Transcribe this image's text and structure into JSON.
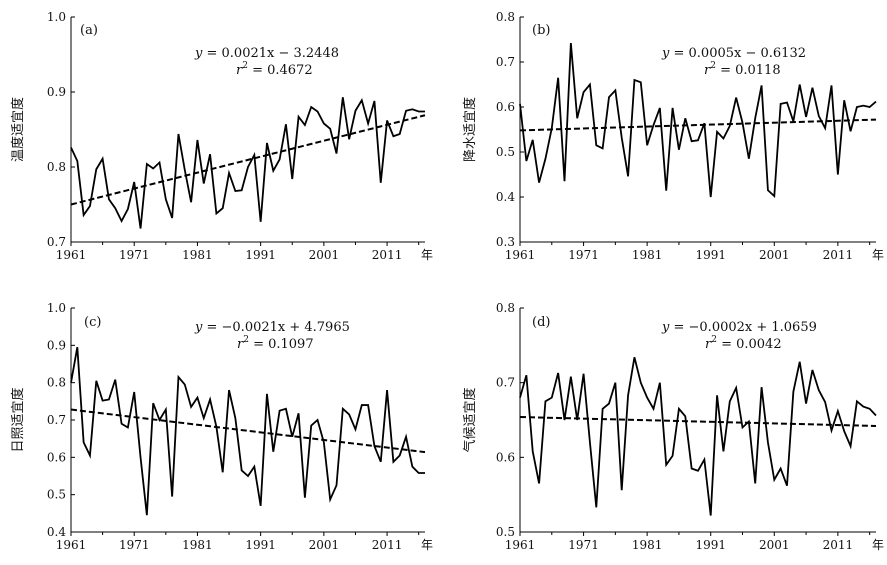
{
  "chart_data": [
    {
      "type": "line",
      "panel_label": "(a)",
      "ylabel": "温度适宜度",
      "xlabel_suffix": "年",
      "ylim": [
        0.7,
        1.0
      ],
      "yticks": [
        "0.7",
        "0.8",
        "0.9",
        "1.0"
      ],
      "xticks": [
        "1961",
        "1971",
        "1981",
        "1991",
        "2001",
        "2011"
      ],
      "x": [
        1961,
        1962,
        1963,
        1964,
        1965,
        1966,
        1967,
        1968,
        1969,
        1970,
        1971,
        1972,
        1973,
        1974,
        1975,
        1976,
        1977,
        1978,
        1979,
        1980,
        1981,
        1982,
        1983,
        1984,
        1985,
        1986,
        1987,
        1988,
        1989,
        1990,
        1991,
        1992,
        1993,
        1994,
        1995,
        1996,
        1997,
        1998,
        1999,
        2000,
        2001,
        2002,
        2003,
        2004,
        2005,
        2006,
        2007,
        2008,
        2009,
        2010,
        2011,
        2012,
        2013,
        2014,
        2015,
        2016,
        2017
      ],
      "series": [
        {
          "name": "observed",
          "values": [
            0.826,
            0.808,
            0.736,
            0.748,
            0.797,
            0.811,
            0.757,
            0.745,
            0.728,
            0.744,
            0.78,
            0.718,
            0.804,
            0.798,
            0.806,
            0.757,
            0.732,
            0.844,
            0.796,
            0.753,
            0.836,
            0.778,
            0.817,
            0.738,
            0.745,
            0.792,
            0.768,
            0.769,
            0.8,
            0.816,
            0.727,
            0.832,
            0.795,
            0.81,
            0.857,
            0.784,
            0.867,
            0.856,
            0.88,
            0.874,
            0.858,
            0.851,
            0.818,
            0.893,
            0.837,
            0.875,
            0.889,
            0.858,
            0.888,
            0.779,
            0.862,
            0.841,
            0.844,
            0.875,
            0.877,
            0.874,
            0.874
          ]
        },
        {
          "name": "trend",
          "style": "dashed",
          "values": [
            0.75,
            0.869
          ],
          "x": [
            1961,
            2017
          ]
        }
      ],
      "equation_prefix": "y",
      "equation_rest": " = 0.0021x − 3.2448",
      "r2_prefix": "r",
      "r2_rest": " = 0.4672"
    },
    {
      "type": "line",
      "panel_label": "(b)",
      "ylabel": "降水适宜度",
      "xlabel_suffix": "年",
      "ylim": [
        0.3,
        0.8
      ],
      "yticks": [
        "0.3",
        "0.4",
        "0.5",
        "0.6",
        "0.7",
        "0.8"
      ],
      "xticks": [
        "1961",
        "1971",
        "1981",
        "1991",
        "2001",
        "2011"
      ],
      "x": [
        1961,
        1962,
        1963,
        1964,
        1965,
        1966,
        1967,
        1968,
        1969,
        1970,
        1971,
        1972,
        1973,
        1974,
        1975,
        1976,
        1977,
        1978,
        1979,
        1980,
        1981,
        1982,
        1983,
        1984,
        1985,
        1986,
        1987,
        1988,
        1989,
        1990,
        1991,
        1992,
        1993,
        1994,
        1995,
        1996,
        1997,
        1998,
        1999,
        2000,
        2001,
        2002,
        2003,
        2004,
        2005,
        2006,
        2007,
        2008,
        2009,
        2010,
        2011,
        2012,
        2013,
        2014,
        2015,
        2016,
        2017
      ],
      "series": [
        {
          "name": "observed",
          "values": [
            0.607,
            0.48,
            0.527,
            0.432,
            0.485,
            0.553,
            0.665,
            0.435,
            0.742,
            0.575,
            0.633,
            0.65,
            0.515,
            0.508,
            0.622,
            0.637,
            0.532,
            0.446,
            0.66,
            0.655,
            0.515,
            0.56,
            0.598,
            0.414,
            0.598,
            0.505,
            0.575,
            0.524,
            0.526,
            0.564,
            0.4,
            0.545,
            0.53,
            0.558,
            0.621,
            0.565,
            0.485,
            0.575,
            0.648,
            0.415,
            0.402,
            0.607,
            0.61,
            0.568,
            0.65,
            0.578,
            0.643,
            0.58,
            0.553,
            0.648,
            0.45,
            0.615,
            0.546,
            0.6,
            0.603,
            0.6,
            0.612
          ]
        },
        {
          "name": "trend",
          "style": "dashed",
          "values": [
            0.548,
            0.572
          ],
          "x": [
            1961,
            2017
          ]
        }
      ],
      "equation_prefix": "y",
      "equation_rest": " = 0.0005x − 0.6132",
      "r2_prefix": "r",
      "r2_rest": " = 0.0118"
    },
    {
      "type": "line",
      "panel_label": "(c)",
      "ylabel": "日照适宜度",
      "xlabel_suffix": "年",
      "ylim": [
        0.4,
        1.0
      ],
      "yticks": [
        "0.4",
        "0.5",
        "0.6",
        "0.7",
        "0.8",
        "0.9",
        "1.0"
      ],
      "xticks": [
        "1961",
        "1971",
        "1981",
        "1991",
        "2001",
        "2011"
      ],
      "x": [
        1961,
        1962,
        1963,
        1964,
        1965,
        1966,
        1967,
        1968,
        1969,
        1970,
        1971,
        1972,
        1973,
        1974,
        1975,
        1976,
        1977,
        1978,
        1979,
        1980,
        1981,
        1982,
        1983,
        1984,
        1985,
        1986,
        1987,
        1988,
        1989,
        1990,
        1991,
        1992,
        1993,
        1994,
        1995,
        1996,
        1997,
        1998,
        1999,
        2000,
        2001,
        2002,
        2003,
        2004,
        2005,
        2006,
        2007,
        2008,
        2009,
        2010,
        2011,
        2012,
        2013,
        2014,
        2015,
        2016,
        2017
      ],
      "series": [
        {
          "name": "observed",
          "values": [
            0.8,
            0.895,
            0.64,
            0.605,
            0.805,
            0.752,
            0.755,
            0.808,
            0.69,
            0.68,
            0.775,
            0.6,
            0.445,
            0.745,
            0.7,
            0.728,
            0.495,
            0.815,
            0.795,
            0.735,
            0.76,
            0.705,
            0.755,
            0.682,
            0.56,
            0.78,
            0.705,
            0.565,
            0.55,
            0.575,
            0.47,
            0.77,
            0.615,
            0.725,
            0.73,
            0.655,
            0.718,
            0.492,
            0.685,
            0.7,
            0.64,
            0.487,
            0.525,
            0.73,
            0.715,
            0.675,
            0.74,
            0.74,
            0.63,
            0.588,
            0.78,
            0.588,
            0.605,
            0.655,
            0.575,
            0.558,
            0.558
          ]
        },
        {
          "name": "trend",
          "style": "dashed",
          "values": [
            0.728,
            0.614
          ],
          "x": [
            1961,
            2017
          ]
        }
      ],
      "equation_prefix": "y",
      "equation_rest": " = −0.0021x + 4.7965",
      "r2_prefix": "r",
      "r2_rest": " = 0.1097"
    },
    {
      "type": "line",
      "panel_label": "(d)",
      "ylabel": "气候适宜度",
      "xlabel_suffix": "年",
      "ylim": [
        0.5,
        0.8
      ],
      "yticks": [
        "0.5",
        "0.6",
        "0.7",
        "0.8"
      ],
      "xticks": [
        "1961",
        "1971",
        "1981",
        "1991",
        "2001",
        "2011"
      ],
      "x": [
        1961,
        1962,
        1963,
        1964,
        1965,
        1966,
        1967,
        1968,
        1969,
        1970,
        1971,
        1972,
        1973,
        1974,
        1975,
        1976,
        1977,
        1978,
        1979,
        1980,
        1981,
        1982,
        1983,
        1984,
        1985,
        1986,
        1987,
        1988,
        1989,
        1990,
        1991,
        1992,
        1993,
        1994,
        1995,
        1996,
        1997,
        1998,
        1999,
        2000,
        2001,
        2002,
        2003,
        2004,
        2005,
        2006,
        2007,
        2008,
        2009,
        2010,
        2011,
        2012,
        2013,
        2014,
        2015,
        2016,
        2017
      ],
      "series": [
        {
          "name": "observed",
          "values": [
            0.68,
            0.71,
            0.608,
            0.565,
            0.675,
            0.68,
            0.713,
            0.65,
            0.708,
            0.65,
            0.712,
            0.62,
            0.533,
            0.665,
            0.672,
            0.7,
            0.556,
            0.683,
            0.734,
            0.7,
            0.68,
            0.665,
            0.7,
            0.59,
            0.602,
            0.665,
            0.655,
            0.585,
            0.582,
            0.597,
            0.522,
            0.683,
            0.608,
            0.675,
            0.693,
            0.64,
            0.648,
            0.565,
            0.694,
            0.62,
            0.57,
            0.585,
            0.562,
            0.688,
            0.728,
            0.672,
            0.717,
            0.69,
            0.674,
            0.636,
            0.662,
            0.635,
            0.615,
            0.675,
            0.668,
            0.665,
            0.656
          ]
        },
        {
          "name": "trend",
          "style": "dashed",
          "values": [
            0.654,
            0.642
          ],
          "x": [
            1961,
            2017
          ]
        }
      ],
      "equation_prefix": "y",
      "equation_rest": " = −0.0002x + 1.0659",
      "r2_prefix": "r",
      "r2_rest": " = 0.0042"
    }
  ]
}
